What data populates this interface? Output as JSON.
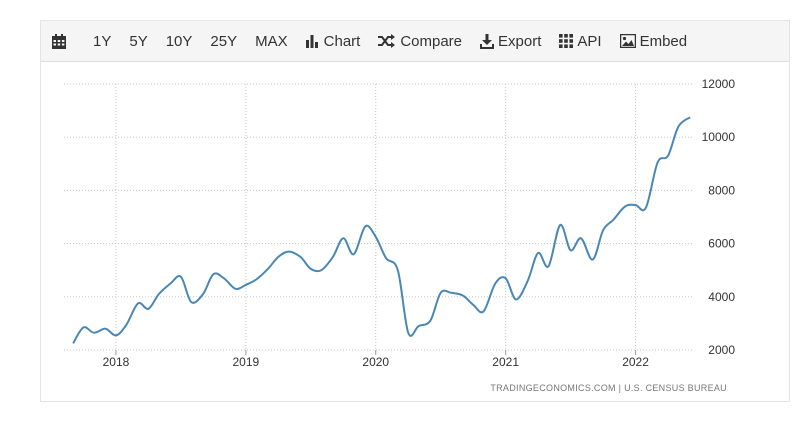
{
  "toolbar": {
    "calendar_icon": "calendar-icon",
    "ranges": [
      "1Y",
      "5Y",
      "10Y",
      "25Y",
      "MAX"
    ],
    "chart_label": "Chart",
    "compare_label": "Compare",
    "export_label": "Export",
    "api_label": "API",
    "embed_label": "Embed"
  },
  "source": "TRADINGECONOMICS.COM  |  U.S. CENSUS BUREAU",
  "colors": {
    "line": "#4a87b5",
    "grid": "#c8c8c8",
    "toolbar_bg": "#f5f5f5",
    "text": "#333333"
  },
  "chart_data": {
    "type": "line",
    "title": "",
    "xlabel": "",
    "ylabel": "",
    "xlim": [
      2017.6,
      2022.45
    ],
    "ylim": [
      2000,
      12000
    ],
    "x_ticks": [
      2018,
      2019,
      2020,
      2021,
      2022
    ],
    "y_ticks": [
      2000,
      4000,
      6000,
      8000,
      10000,
      12000
    ],
    "grid": true,
    "series": [
      {
        "name": "",
        "x": [
          2017.67,
          2017.75,
          2017.83,
          2017.92,
          2018.0,
          2018.08,
          2018.17,
          2018.25,
          2018.33,
          2018.42,
          2018.5,
          2018.58,
          2018.67,
          2018.75,
          2018.83,
          2018.92,
          2019.0,
          2019.08,
          2019.17,
          2019.25,
          2019.33,
          2019.42,
          2019.5,
          2019.58,
          2019.67,
          2019.75,
          2019.83,
          2019.92,
          2020.0,
          2020.08,
          2020.17,
          2020.25,
          2020.33,
          2020.42,
          2020.5,
          2020.58,
          2020.67,
          2020.75,
          2020.83,
          2020.92,
          2021.0,
          2021.08,
          2021.17,
          2021.25,
          2021.33,
          2021.42,
          2021.5,
          2021.58,
          2021.67,
          2021.75,
          2021.83,
          2021.92,
          2022.0,
          2022.08,
          2022.17,
          2022.25,
          2022.33,
          2022.42
        ],
        "y": [
          2250,
          2850,
          2650,
          2800,
          2550,
          2950,
          3750,
          3550,
          4100,
          4500,
          4750,
          3800,
          4100,
          4850,
          4700,
          4300,
          4450,
          4650,
          5050,
          5500,
          5700,
          5500,
          5050,
          5000,
          5500,
          6200,
          5600,
          6650,
          6250,
          5450,
          5000,
          2650,
          2900,
          3100,
          4150,
          4150,
          4050,
          3700,
          3450,
          4500,
          4700,
          3900,
          4600,
          5650,
          5150,
          6700,
          5750,
          6200,
          5400,
          6500,
          6900,
          7400,
          7450,
          7350,
          9050,
          9300,
          10400,
          10750
        ]
      }
    ]
  }
}
